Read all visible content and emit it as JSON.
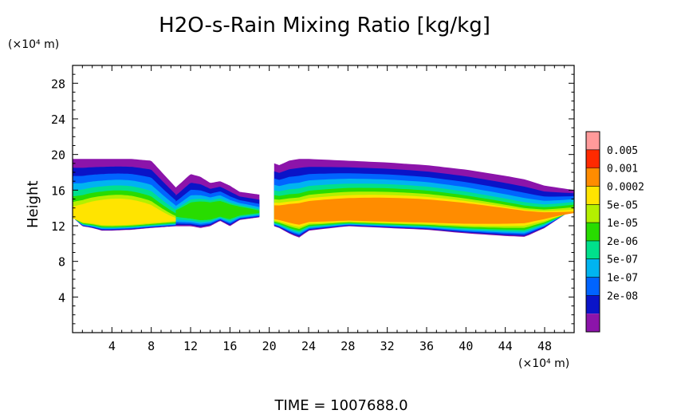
{
  "chart_data": {
    "type": "heatmap",
    "title": "H2O-s-Rain Mixing Ratio [kg/kg]",
    "xlabel": "(×10⁴ m)",
    "ylabel": "Height",
    "y_unit_label": "(×10⁴ m)",
    "xlim": [
      0,
      51
    ],
    "ylim": [
      0,
      30
    ],
    "x_ticks": [
      "4",
      "8",
      "12",
      "16",
      "20",
      "24",
      "28",
      "32",
      "36",
      "40",
      "44",
      "48"
    ],
    "y_ticks": [
      "4",
      "8",
      "12",
      "16",
      "20",
      "24",
      "28"
    ],
    "x_tick_values": [
      4,
      8,
      12,
      16,
      20,
      24,
      28,
      32,
      36,
      40,
      44,
      48
    ],
    "y_tick_values": [
      4,
      8,
      12,
      16,
      20,
      24,
      28
    ],
    "colorbar": {
      "levels": [
        "0.005",
        "0.001",
        "0.0002",
        "5e-05",
        "1e-05",
        "2e-06",
        "5e-07",
        "1e-07",
        "2e-08"
      ],
      "colors": [
        "#ff9a9a",
        "#ff2a00",
        "#ff8c00",
        "#ffe400",
        "#b4f000",
        "#28dc00",
        "#00e08c",
        "#00b4f0",
        "#0064ff",
        "#0a14c8",
        "#8c14aa"
      ]
    },
    "clouds": [
      {
        "name": "left",
        "x_range": [
          0,
          10.5
        ],
        "base": [
          [
            0,
            13
          ],
          [
            1,
            12
          ],
          [
            2,
            11.8
          ],
          [
            3,
            11.5
          ],
          [
            4,
            11.5
          ],
          [
            6,
            11.6
          ],
          [
            8,
            11.8
          ],
          [
            10.5,
            12
          ]
        ],
        "top": [
          [
            0,
            19.5
          ],
          [
            1,
            19.5
          ],
          [
            2,
            19.5
          ],
          [
            3,
            19.5
          ],
          [
            4,
            19.5
          ],
          [
            6,
            19.5
          ],
          [
            8,
            19.3
          ],
          [
            10.5,
            16.3
          ]
        ],
        "core_x": 4.5,
        "core_y": 12.8,
        "peak_level": 3
      },
      {
        "name": "middle",
        "x_range": [
          10.5,
          19
        ],
        "base": [
          [
            10.5,
            12
          ],
          [
            12,
            12
          ],
          [
            13,
            11.8
          ],
          [
            14,
            12
          ],
          [
            15,
            12.6
          ],
          [
            16,
            12
          ],
          [
            17,
            12.7
          ],
          [
            19,
            13
          ]
        ],
        "top": [
          [
            10.5,
            16.3
          ],
          [
            12,
            17.8
          ],
          [
            13,
            17.5
          ],
          [
            14,
            16.8
          ],
          [
            15,
            17
          ],
          [
            16,
            16.5
          ],
          [
            17,
            15.8
          ],
          [
            19,
            15.5
          ]
        ],
        "core_x": 14.5,
        "core_y": 13.7,
        "peak_level": 5
      },
      {
        "name": "right",
        "x_range": [
          20.5,
          51
        ],
        "base": [
          [
            20.5,
            12
          ],
          [
            21,
            11.8
          ],
          [
            22,
            11.2
          ],
          [
            23,
            10.7
          ],
          [
            24,
            11.5
          ],
          [
            28,
            12
          ],
          [
            32,
            11.8
          ],
          [
            36,
            11.6
          ],
          [
            40,
            11.2
          ],
          [
            44,
            10.9
          ],
          [
            46,
            10.8
          ],
          [
            48,
            11.8
          ],
          [
            51,
            14
          ]
        ],
        "top": [
          [
            20.5,
            19
          ],
          [
            21,
            18.8
          ],
          [
            22,
            19.3
          ],
          [
            23,
            19.5
          ],
          [
            24,
            19.5
          ],
          [
            28,
            19.3
          ],
          [
            32,
            19.1
          ],
          [
            36,
            18.8
          ],
          [
            40,
            18.3
          ],
          [
            44,
            17.6
          ],
          [
            46,
            17.2
          ],
          [
            48,
            16.5
          ],
          [
            51,
            16
          ]
        ],
        "core_x": 33,
        "core_y": 13.3,
        "peak_level": 2
      }
    ],
    "footer": "TIME  =  1007688.0"
  }
}
